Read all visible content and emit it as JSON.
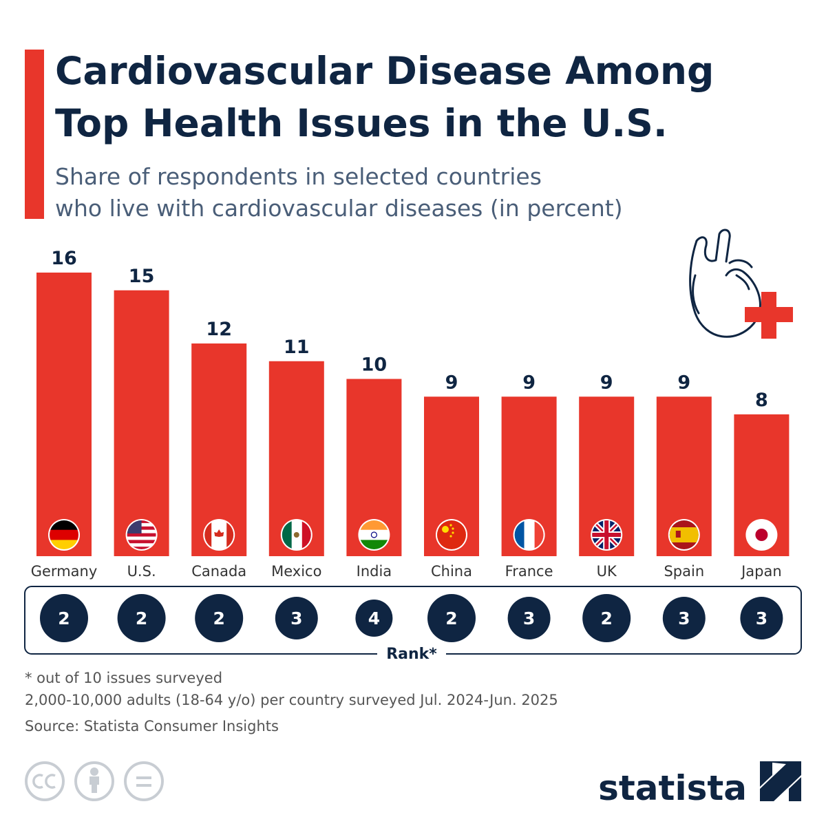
{
  "chart_data": {
    "type": "bar",
    "title": [
      "Cardiovascular Disease Among",
      "Top Health Issues in the U.S."
    ],
    "subtitle": [
      "Share of respondents in selected countries",
      "who live with cardiovascular diseases (in percent)"
    ],
    "categories": [
      "Germany",
      "U.S.",
      "Canada",
      "Mexico",
      "India",
      "China",
      "France",
      "UK",
      "Spain",
      "Japan"
    ],
    "values": [
      16,
      15,
      12,
      11,
      10,
      9,
      9,
      9,
      9,
      8
    ],
    "color": "#e8362b",
    "ranks": {
      "label": "Rank*",
      "values": [
        2,
        2,
        2,
        3,
        4,
        2,
        3,
        2,
        3,
        3
      ]
    },
    "notes": [
      "* out of 10 issues surveyed",
      "2,000-10,000 adults (18-64 y/o) per country surveyed Jul. 2024-Jun. 2025",
      "Source: Statista Consumer Insights"
    ],
    "brand": "statista"
  }
}
